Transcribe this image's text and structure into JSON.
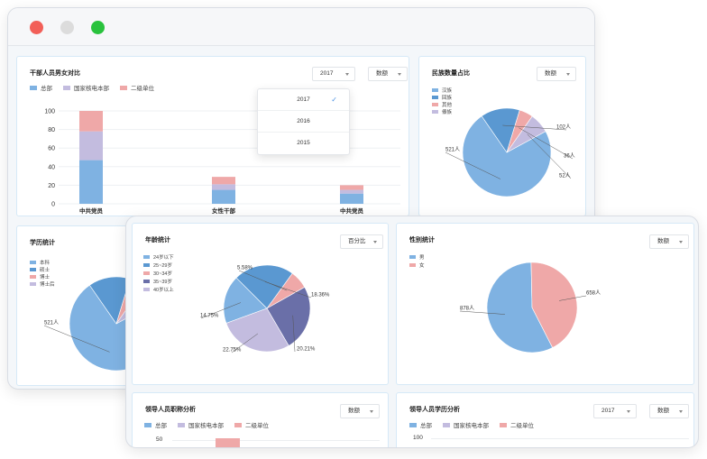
{
  "window_back": {
    "cadre_panel": {
      "title": "干部人员男女对比",
      "year_select": "2017",
      "metric_select": "数额",
      "legend": [
        {
          "label": "总部",
          "color": "#7fb2e2"
        },
        {
          "label": "国家核电本部",
          "color": "#c3bcdf"
        },
        {
          "label": "二级单位",
          "color": "#efa8a8"
        }
      ],
      "dropdown_options": [
        "2017",
        "2016",
        "2015"
      ],
      "dropdown_selected": "2017"
    },
    "ethnic_panel": {
      "title": "民族数量占比",
      "metric_select": "数额",
      "legend": [
        {
          "label": "汉族",
          "color": "#7fb2e2"
        },
        {
          "label": "回族",
          "color": "#5a98d1"
        },
        {
          "label": "其他",
          "color": "#efa8a8"
        },
        {
          "label": "傣族",
          "color": "#c3bcdf"
        }
      ]
    },
    "edu_panel": {
      "title": "学历统计",
      "legend": [
        {
          "label": "本科",
          "color": "#7fb2e2"
        },
        {
          "label": "硕士",
          "color": "#5a98d1"
        },
        {
          "label": "博士",
          "color": "#efa8a8"
        },
        {
          "label": "博士后",
          "color": "#c3bcdf"
        }
      ]
    }
  },
  "window_front": {
    "age_panel": {
      "title": "年龄统计",
      "metric_select": "百分比",
      "legend": [
        {
          "label": "24岁以下",
          "color": "#7fb2e2"
        },
        {
          "label": "25~29岁",
          "color": "#5a98d1"
        },
        {
          "label": "30~34岁",
          "color": "#efa8a8"
        },
        {
          "label": "35~39岁",
          "color": "#6a6fa8"
        },
        {
          "label": "40岁以上",
          "color": "#c3bcdf"
        }
      ]
    },
    "gender_panel": {
      "title": "性别统计",
      "metric_select": "数额",
      "legend": [
        {
          "label": "男",
          "color": "#7fb2e2"
        },
        {
          "label": "女",
          "color": "#efa8a8"
        }
      ]
    },
    "leader_title_panel": {
      "title": "领导人员职称分析",
      "metric_select": "数额",
      "legend": [
        {
          "label": "总部",
          "color": "#7fb2e2"
        },
        {
          "label": "国家核电本部",
          "color": "#c3bcdf"
        },
        {
          "label": "二级单位",
          "color": "#efa8a8"
        }
      ],
      "y_tick": "50"
    },
    "leader_edu_panel": {
      "title": "领导人员学历分析",
      "year_select": "2017",
      "metric_select": "数额",
      "legend": [
        {
          "label": "总部",
          "color": "#7fb2e2"
        },
        {
          "label": "国家核电本部",
          "color": "#c3bcdf"
        },
        {
          "label": "二级单位",
          "color": "#efa8a8"
        }
      ],
      "y_tick": "100"
    }
  },
  "chart_data": [
    {
      "type": "bar",
      "stacked": true,
      "categories": [
        "中共党员",
        "女性干部",
        "中共党员"
      ],
      "series": [
        {
          "name": "总部",
          "values": [
            47,
            15,
            11
          ]
        },
        {
          "name": "国家核电本部",
          "values": [
            31,
            6,
            4
          ]
        },
        {
          "name": "二级单位",
          "values": [
            22,
            8,
            5
          ]
        }
      ],
      "ylim": [
        0,
        100
      ],
      "yticks": [
        "0",
        "20",
        "40",
        "60",
        "80",
        "100"
      ],
      "colors": [
        "#7fb2e2",
        "#c3bcdf",
        "#efa8a8"
      ]
    },
    {
      "type": "pie",
      "labels": [
        "汉族",
        "回族",
        "其他",
        "傣族"
      ],
      "values": [
        521,
        102,
        36,
        52
      ],
      "data_labels": [
        "521人",
        "102人",
        "36人",
        "52人"
      ],
      "colors": [
        "#7fb2e2",
        "#5a98d1",
        "#efa8a8",
        "#c3bcdf"
      ]
    },
    {
      "type": "pie",
      "labels": [
        "本科",
        "硕士",
        "博士",
        "博士后"
      ],
      "values": [
        521,
        102,
        36,
        52
      ],
      "data_labels": [
        "521人"
      ],
      "colors": [
        "#7fb2e2",
        "#5a98d1",
        "#efa8a8",
        "#c3bcdf"
      ]
    },
    {
      "type": "pie",
      "labels": [
        "24岁以下",
        "25~29岁",
        "30~34岁",
        "35~39岁",
        "40岁以上"
      ],
      "values": [
        14.75,
        18.36,
        5.58,
        20.21,
        22.75
      ],
      "data_labels": [
        "5.58%",
        "18.36%",
        "20.21%",
        "22.75%",
        "14.75%"
      ],
      "colors": [
        "#7fb2e2",
        "#5a98d1",
        "#efa8a8",
        "#6a6fa8",
        "#c3bcdf"
      ]
    },
    {
      "type": "pie",
      "labels": [
        "男",
        "女"
      ],
      "values": [
        878,
        658
      ],
      "data_labels": [
        "878人",
        "658人"
      ],
      "colors": [
        "#7fb2e2",
        "#efa8a8"
      ]
    }
  ]
}
